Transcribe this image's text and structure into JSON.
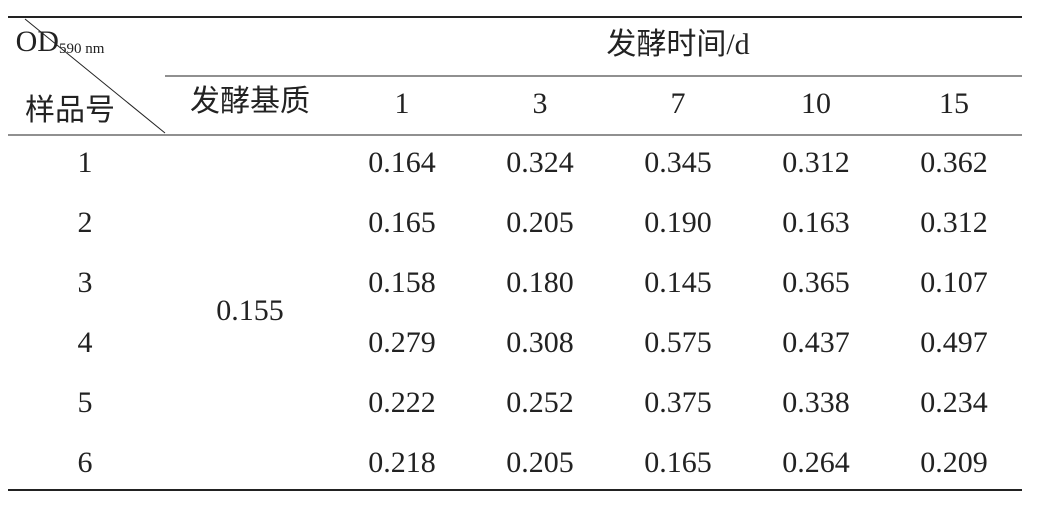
{
  "table": {
    "corner": {
      "top": "OD",
      "top_sub": "590 nm",
      "bottom": "样品号"
    },
    "group_header": "发酵时间/d",
    "substrate_header": "发酵基质",
    "days": [
      "1",
      "3",
      "7",
      "10",
      "15"
    ],
    "substrate_value": "0.155",
    "rows": [
      {
        "sample": "1",
        "values": [
          "0.164",
          "0.324",
          "0.345",
          "0.312",
          "0.362"
        ]
      },
      {
        "sample": "2",
        "values": [
          "0.165",
          "0.205",
          "0.190",
          "0.163",
          "0.312"
        ]
      },
      {
        "sample": "3",
        "values": [
          "0.158",
          "0.180",
          "0.145",
          "0.365",
          "0.107"
        ]
      },
      {
        "sample": "4",
        "values": [
          "0.279",
          "0.308",
          "0.575",
          "0.437",
          "0.497"
        ]
      },
      {
        "sample": "5",
        "values": [
          "0.222",
          "0.252",
          "0.375",
          "0.338",
          "0.234"
        ]
      },
      {
        "sample": "6",
        "values": [
          "0.218",
          "0.205",
          "0.165",
          "0.264",
          "0.209"
        ]
      }
    ]
  }
}
